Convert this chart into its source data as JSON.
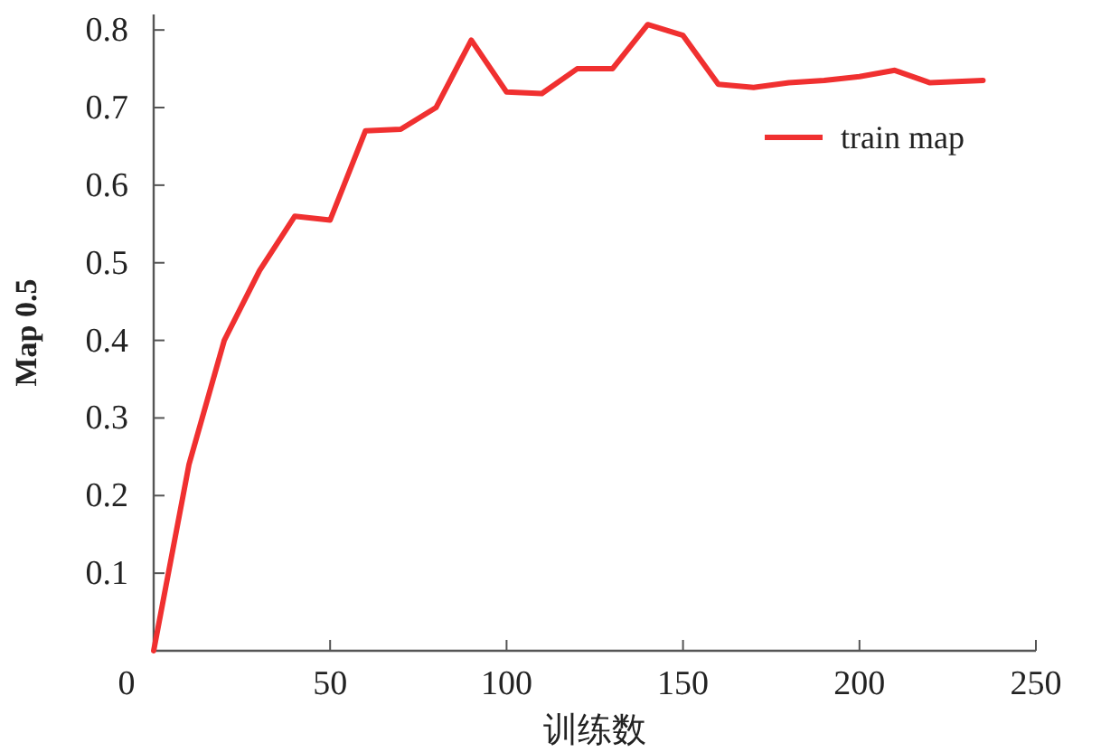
{
  "chart_data": {
    "type": "line",
    "xlabel": "训练数",
    "ylabel": "Map 0.5",
    "x": [
      0,
      10,
      20,
      30,
      40,
      50,
      60,
      70,
      80,
      90,
      100,
      110,
      120,
      130,
      140,
      150,
      160,
      170,
      180,
      190,
      200,
      210,
      220,
      235
    ],
    "series": [
      {
        "name": "train map",
        "color": "#f03030",
        "values": [
          0,
          0.24,
          0.4,
          0.49,
          0.56,
          0.555,
          0.67,
          0.672,
          0.7,
          0.787,
          0.72,
          0.718,
          0.75,
          0.75,
          0.807,
          0.793,
          0.73,
          0.726,
          0.732,
          0.735,
          0.74,
          0.748,
          0.732,
          0.735
        ]
      }
    ],
    "xlim": [
      0,
      250
    ],
    "xticks": [
      0,
      50,
      100,
      150,
      200,
      250
    ],
    "ylim": [
      0,
      0.82
    ],
    "yticks": [
      {
        "value": 0,
        "label": null
      },
      0.1,
      0.2,
      0.3,
      0.4,
      0.5,
      0.6,
      0.7,
      0.8
    ],
    "legend": "top right",
    "grid": false,
    "marker": "none",
    "line_style": "solid"
  }
}
